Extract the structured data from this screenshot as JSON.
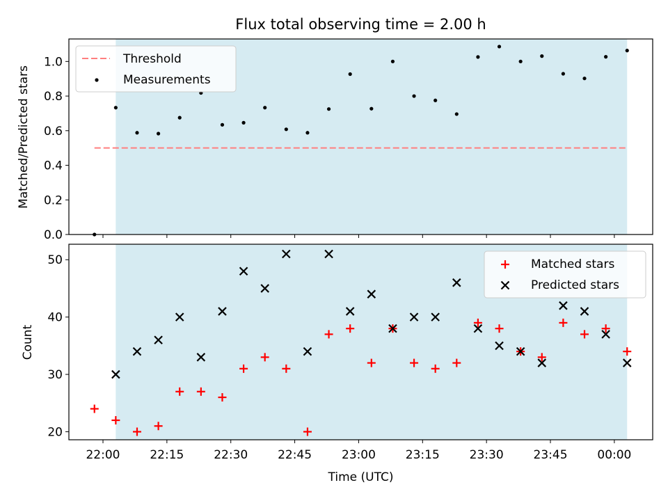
{
  "chart_data": [
    {
      "type": "scatter",
      "title": "Flux total observing time = 2.00 h",
      "xlabel": "",
      "ylabel": "Matched/Predicted stars",
      "ylim": [
        0,
        1.13
      ],
      "yticks": [
        0.0,
        0.2,
        0.4,
        0.6,
        0.8,
        1.0
      ],
      "ytick_labels": [
        "0.0",
        "0.2",
        "0.4",
        "0.6",
        "0.8",
        "1.0"
      ],
      "x_unit": "minutes after 22:00 (UTC)",
      "shaded_span": [
        3,
        123
      ],
      "shade_color": "#add8e6",
      "threshold": {
        "name": "Threshold",
        "value": 0.5,
        "x_range": [
          -2,
          123
        ],
        "color": "#ff7f7f"
      },
      "series": [
        {
          "name": "Measurements",
          "color": "#000000",
          "points": [
            [
              -2,
              0.0
            ],
            [
              3,
              0.733
            ],
            [
              8,
              0.588
            ],
            [
              13,
              0.583
            ],
            [
              18,
              0.675
            ],
            [
              23,
              0.818
            ],
            [
              28,
              0.634
            ],
            [
              33,
              0.646
            ],
            [
              38,
              0.733
            ],
            [
              43,
              0.608
            ],
            [
              48,
              0.588
            ],
            [
              53,
              0.725
            ],
            [
              58,
              0.927
            ],
            [
              63,
              0.727
            ],
            [
              68,
              1.0
            ],
            [
              73,
              0.8
            ],
            [
              78,
              0.775
            ],
            [
              83,
              0.696
            ],
            [
              88,
              1.026
            ],
            [
              93,
              1.086
            ],
            [
              98,
              1.0
            ],
            [
              103,
              1.031
            ],
            [
              108,
              0.929
            ],
            [
              113,
              0.902
            ],
            [
              118,
              1.027
            ],
            [
              123,
              1.063
            ]
          ]
        }
      ],
      "legend_position": "upper left"
    },
    {
      "type": "scatter",
      "xlabel": "Time (UTC)",
      "ylabel": "Count",
      "ylim": [
        18.6,
        52.7
      ],
      "yticks": [
        20,
        30,
        40,
        50
      ],
      "ytick_labels": [
        "20",
        "30",
        "40",
        "50"
      ],
      "xlim": [
        -8,
        129
      ],
      "xticks": [
        0,
        15,
        30,
        45,
        60,
        75,
        90,
        105,
        120
      ],
      "xtick_labels": [
        "22:00",
        "22:15",
        "22:30",
        "22:45",
        "23:00",
        "23:15",
        "23:30",
        "23:45",
        "00:00"
      ],
      "shaded_span": [
        3,
        123
      ],
      "shade_color": "#add8e6",
      "series": [
        {
          "name": "Matched stars",
          "marker": "plus",
          "color": "#ff0000",
          "points": [
            [
              -2,
              24
            ],
            [
              3,
              22
            ],
            [
              8,
              20
            ],
            [
              13,
              21
            ],
            [
              18,
              27
            ],
            [
              23,
              27
            ],
            [
              28,
              26
            ],
            [
              33,
              31
            ],
            [
              38,
              33
            ],
            [
              43,
              31
            ],
            [
              48,
              20
            ],
            [
              53,
              37
            ],
            [
              58,
              38
            ],
            [
              63,
              32
            ],
            [
              68,
              38
            ],
            [
              73,
              32
            ],
            [
              78,
              31
            ],
            [
              83,
              32
            ],
            [
              88,
              39
            ],
            [
              93,
              38
            ],
            [
              98,
              34
            ],
            [
              103,
              33
            ],
            [
              108,
              39
            ],
            [
              113,
              37
            ],
            [
              118,
              38
            ],
            [
              123,
              34
            ]
          ]
        },
        {
          "name": "Predicted stars",
          "marker": "x",
          "color": "#000000",
          "points": [
            [
              3,
              30
            ],
            [
              8,
              34
            ],
            [
              13,
              36
            ],
            [
              18,
              40
            ],
            [
              23,
              33
            ],
            [
              28,
              41
            ],
            [
              33,
              48
            ],
            [
              38,
              45
            ],
            [
              43,
              51
            ],
            [
              48,
              34
            ],
            [
              53,
              51
            ],
            [
              58,
              41
            ],
            [
              63,
              44
            ],
            [
              68,
              38
            ],
            [
              73,
              40
            ],
            [
              78,
              40
            ],
            [
              83,
              46
            ],
            [
              88,
              38
            ],
            [
              93,
              35
            ],
            [
              98,
              34
            ],
            [
              103,
              32
            ],
            [
              108,
              42
            ],
            [
              113,
              41
            ],
            [
              118,
              37
            ],
            [
              123,
              32
            ]
          ]
        }
      ],
      "legend_position": "upper right"
    }
  ]
}
